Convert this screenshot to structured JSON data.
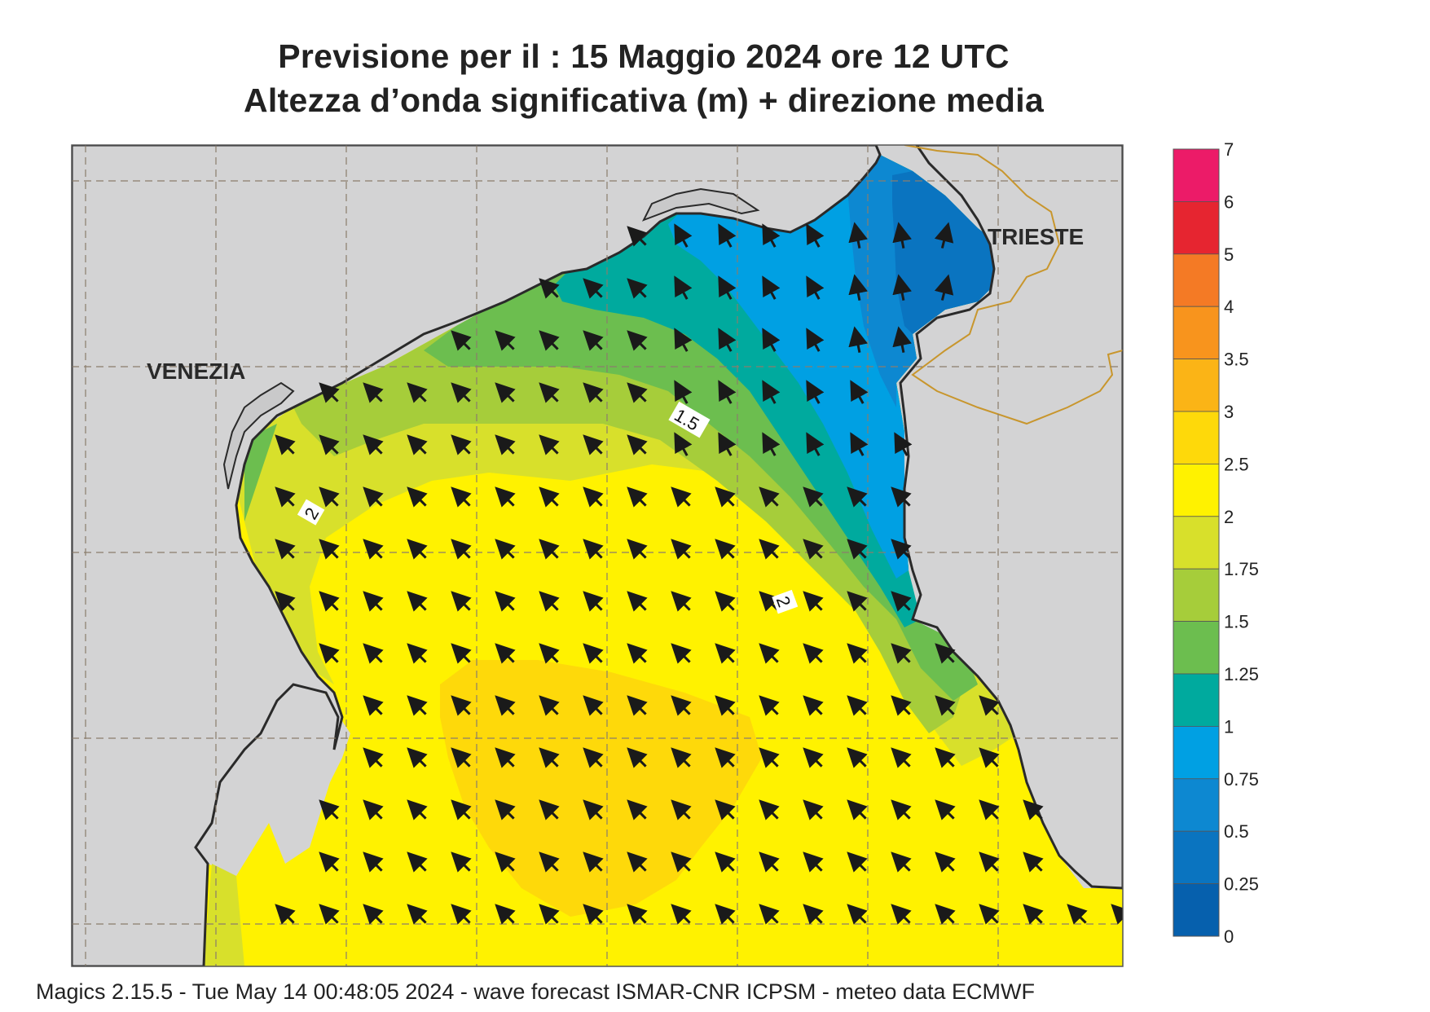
{
  "title": {
    "line1": "Previsione per il  :  15   Maggio  2024   ore 12 UTC",
    "line2": "Altezza d’onda significativa (m) + direzione media"
  },
  "places": {
    "venezia": "VENEZIA",
    "trieste": "TRIESTE"
  },
  "contour_labels": {
    "a": "1.5",
    "b": "2",
    "c": "2"
  },
  "legend": {
    "unit": "m",
    "ticks": [
      "7",
      "6",
      "5",
      "4",
      "3.5",
      "3",
      "2.5",
      "2",
      "1.75",
      "1.5",
      "1.25",
      "1",
      "0.75",
      "0.5",
      "0.25",
      "0"
    ],
    "colors": [
      "#ec1b68",
      "#e62530",
      "#f47a25",
      "#f8941d",
      "#fbb416",
      "#fed90a",
      "#fff200",
      "#d8e02b",
      "#a6cd3a",
      "#6cbe4f",
      "#00aa9e",
      "#00a0e3",
      "#0d88d1",
      "#0a74c0",
      "#0660ad"
    ]
  },
  "vector_field": {
    "mean_direction": "towards north-west",
    "description_shown": "mean wave direction arrows"
  },
  "footer": "Magics 2.15.5 - Tue May 14 00:48:05 2024 - wave forecast  ISMAR-CNR  ICPSM - meteo data   ECMWF"
}
